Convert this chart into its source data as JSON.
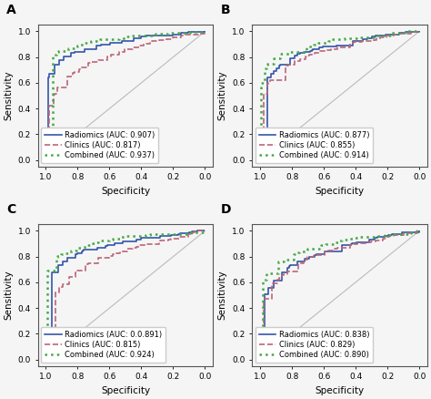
{
  "panels": [
    "A",
    "B",
    "C",
    "D"
  ],
  "legends": {
    "A": [
      "Radiomics (AUC: 0.907)",
      "Clinics (AUC: 0.817)",
      "Combined (AUC: 0.937)"
    ],
    "B": [
      "Radiomics (AUC: 0.877)",
      "Clinics (AUC: 0.855)",
      "Combined (AUC: 0.914)"
    ],
    "C": [
      "Radiomics (AUC: 0.0.891)",
      "Clinics (AUC: 0.815)",
      "Combined (AUC: 0.924)"
    ],
    "D": [
      "Radiomics (AUC: 0.838)",
      "Clinics (AUC: 0.829)",
      "Combined (AUC: 0.890)"
    ]
  },
  "colors": {
    "radiomics": "#3355aa",
    "clinics": "#bb6677",
    "combined": "#44aa44",
    "diagonal": "#bbbbbb"
  },
  "line_styles": {
    "radiomics": "-",
    "clinics": "--",
    "combined": ":"
  },
  "line_widths": {
    "radiomics": 1.2,
    "clinics": 1.2,
    "combined": 1.8
  },
  "xlabel": "Specificity",
  "ylabel": "Sensitivity",
  "xticks": [
    1.0,
    0.8,
    0.6,
    0.4,
    0.2,
    0.0
  ],
  "yticks": [
    0.0,
    0.2,
    0.4,
    0.6,
    0.8,
    1.0
  ],
  "background_color": "#f5f5f5",
  "panel_label_fontsize": 10,
  "axis_label_fontsize": 7.5,
  "tick_fontsize": 6.5,
  "legend_fontsize": 6.0
}
